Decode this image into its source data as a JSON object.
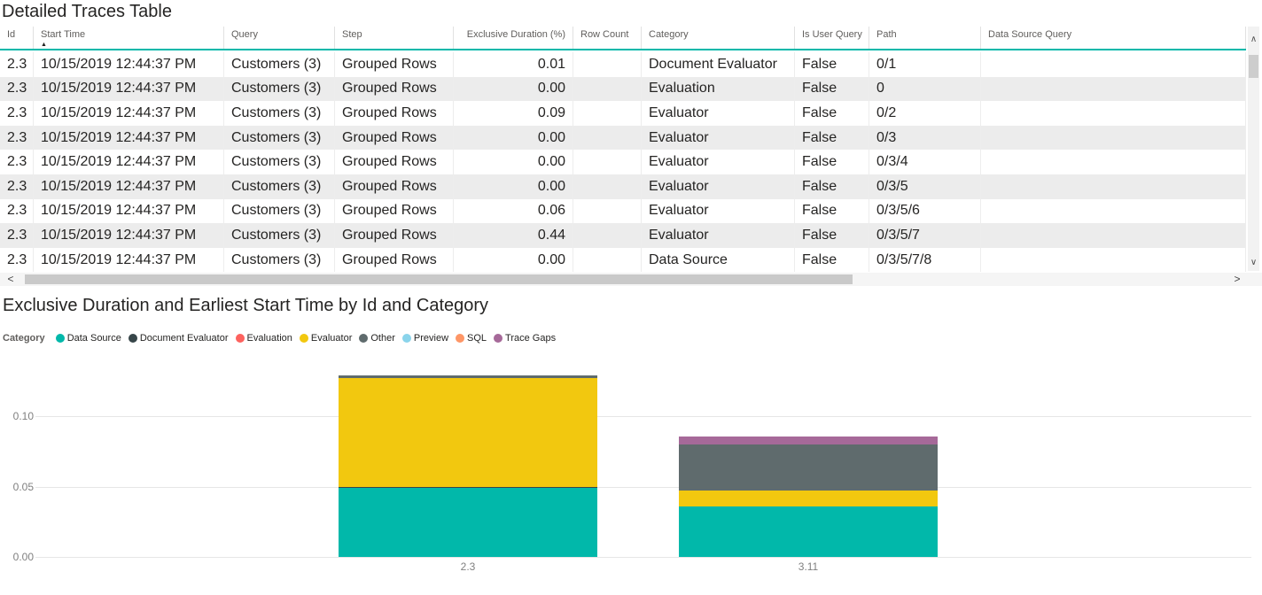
{
  "table": {
    "title": "Detailed Traces Table",
    "columns": [
      "Id",
      "Start Time",
      "Query",
      "Step",
      "Exclusive Duration (%)",
      "Row Count",
      "Category",
      "Is User Query",
      "Path",
      "Data Source Query"
    ],
    "sorted_column": "Start Time",
    "sort_direction": "ascending",
    "rows": [
      [
        "2.3",
        "10/15/2019 12:44:37 PM",
        "Customers (3)",
        "Grouped Rows",
        "0.01",
        "",
        "Document Evaluator",
        "False",
        "0/1",
        ""
      ],
      [
        "2.3",
        "10/15/2019 12:44:37 PM",
        "Customers (3)",
        "Grouped Rows",
        "0.00",
        "",
        "Evaluation",
        "False",
        "0",
        ""
      ],
      [
        "2.3",
        "10/15/2019 12:44:37 PM",
        "Customers (3)",
        "Grouped Rows",
        "0.09",
        "",
        "Evaluator",
        "False",
        "0/2",
        ""
      ],
      [
        "2.3",
        "10/15/2019 12:44:37 PM",
        "Customers (3)",
        "Grouped Rows",
        "0.00",
        "",
        "Evaluator",
        "False",
        "0/3",
        ""
      ],
      [
        "2.3",
        "10/15/2019 12:44:37 PM",
        "Customers (3)",
        "Grouped Rows",
        "0.00",
        "",
        "Evaluator",
        "False",
        "0/3/4",
        ""
      ],
      [
        "2.3",
        "10/15/2019 12:44:37 PM",
        "Customers (3)",
        "Grouped Rows",
        "0.00",
        "",
        "Evaluator",
        "False",
        "0/3/5",
        ""
      ],
      [
        "2.3",
        "10/15/2019 12:44:37 PM",
        "Customers (3)",
        "Grouped Rows",
        "0.06",
        "",
        "Evaluator",
        "False",
        "0/3/5/6",
        ""
      ],
      [
        "2.3",
        "10/15/2019 12:44:37 PM",
        "Customers (3)",
        "Grouped Rows",
        "0.44",
        "",
        "Evaluator",
        "False",
        "0/3/5/7",
        ""
      ],
      [
        "2.3",
        "10/15/2019 12:44:37 PM",
        "Customers (3)",
        "Grouped Rows",
        "0.00",
        "",
        "Data Source",
        "False",
        "0/3/5/7/8",
        ""
      ]
    ]
  },
  "chart": {
    "title": "Exclusive Duration and Earliest Start Time by Id and Category",
    "legend_title": "Category",
    "legend": [
      {
        "label": "Data Source",
        "color": "#01B8AA"
      },
      {
        "label": "Document Evaluator",
        "color": "#374649"
      },
      {
        "label": "Evaluation",
        "color": "#FD625E"
      },
      {
        "label": "Evaluator",
        "color": "#F2C80F"
      },
      {
        "label": "Other",
        "color": "#5F6B6D"
      },
      {
        "label": "Preview",
        "color": "#8AD4EB"
      },
      {
        "label": "SQL",
        "color": "#FE9666"
      },
      {
        "label": "Trace Gaps",
        "color": "#A66999"
      }
    ]
  },
  "chart_data": {
    "type": "bar",
    "stacked": true,
    "title": "Exclusive Duration and Earliest Start Time by Id and Category",
    "categories": [
      "2.3",
      "3.11"
    ],
    "series": [
      {
        "name": "Data Source",
        "color": "#01B8AA",
        "values": [
          0.049,
          0.036
        ]
      },
      {
        "name": "Document Evaluator",
        "color": "#374649",
        "values": [
          0.001,
          0
        ]
      },
      {
        "name": "Evaluator",
        "color": "#F2C80F",
        "values": [
          0.0775,
          0.011
        ]
      },
      {
        "name": "Other",
        "color": "#5F6B6D",
        "values": [
          0.002,
          0.033
        ]
      },
      {
        "name": "Trace Gaps",
        "color": "#A66999",
        "values": [
          0,
          0.006
        ]
      }
    ],
    "xlabel": "",
    "ylabel": "",
    "ylim": [
      0,
      0.135
    ],
    "y_ticks": [
      0.0,
      0.05,
      0.1
    ],
    "grid": true,
    "legend_position": "top"
  },
  "icons": {
    "sort_ascending": "▲",
    "scroll_up": "∧",
    "scroll_down": "∨",
    "scroll_left": "<",
    "scroll_right": ">"
  },
  "colors": {
    "accent_teal": "#01B8AA",
    "alt_row": "#ECECEC"
  }
}
